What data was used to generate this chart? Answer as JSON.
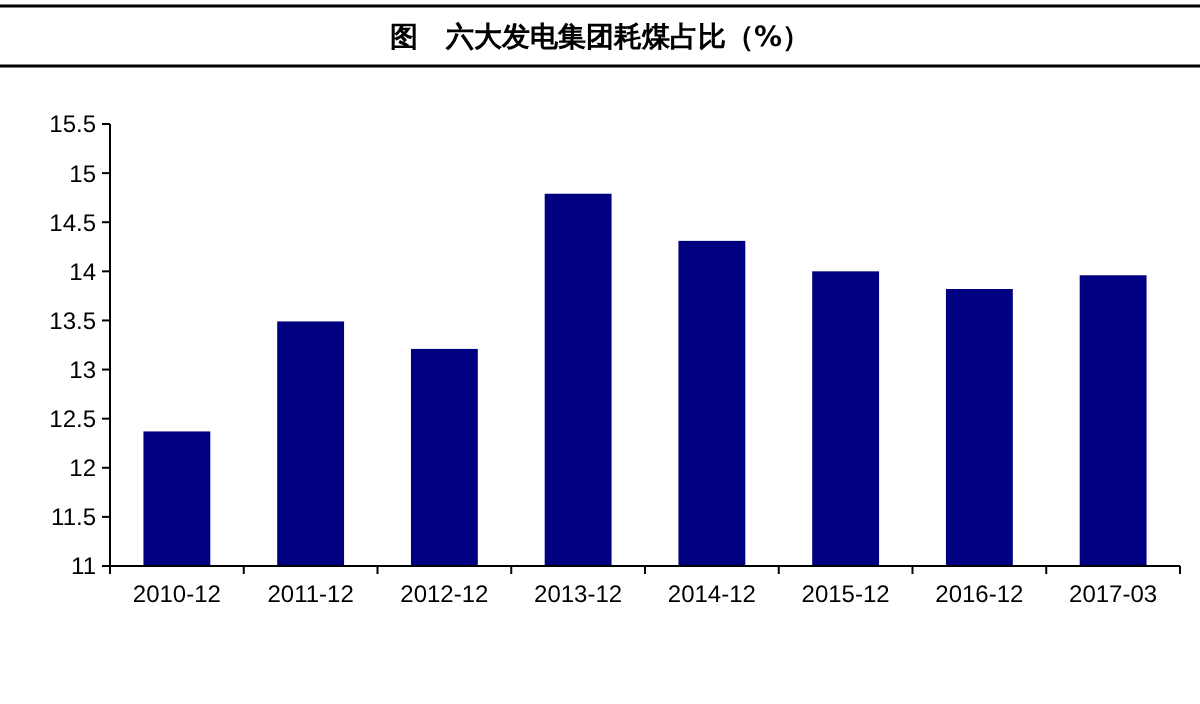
{
  "chart_data": {
    "type": "bar",
    "title": "图　六大发电集团耗煤占比（%）",
    "categories": [
      "2010-12",
      "2011-12",
      "2012-12",
      "2013-12",
      "2014-12",
      "2015-12",
      "2016-12",
      "2017-03"
    ],
    "values": [
      12.37,
      13.49,
      13.21,
      14.79,
      14.31,
      14.0,
      13.82,
      13.96
    ],
    "color": "#000080",
    "ylim": [
      11,
      15.5
    ],
    "yticks": [
      11,
      11.5,
      12,
      12.5,
      13,
      13.5,
      14,
      14.5,
      15,
      15.5
    ],
    "grid": false
  }
}
